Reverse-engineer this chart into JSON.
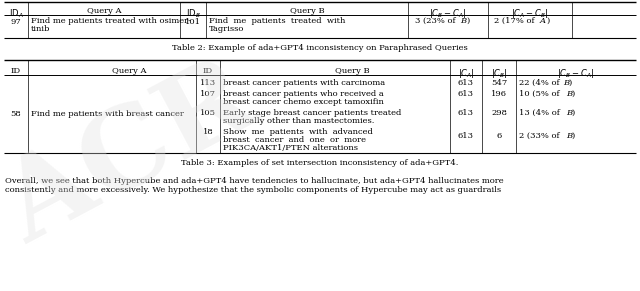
{
  "table2_caption": "Table 2: Example of ada+GPT4 inconsistency on Paraphrased Queries",
  "table3_caption": "Table 3: Examples of set intersection inconsistency of ada+GPT4.",
  "para_line1": "Overall, we see that both Hypercube and ada+GPT4 have tendencies to hallucinate, but ada+GPT4 hallucinates more",
  "para_line2": "consistently and more excessively. We hypothesize that the symbolic components of Hypercube may act as guardrails",
  "bg_color": "#ffffff",
  "text_color": "#000000",
  "watermark_color": "#dddddd"
}
